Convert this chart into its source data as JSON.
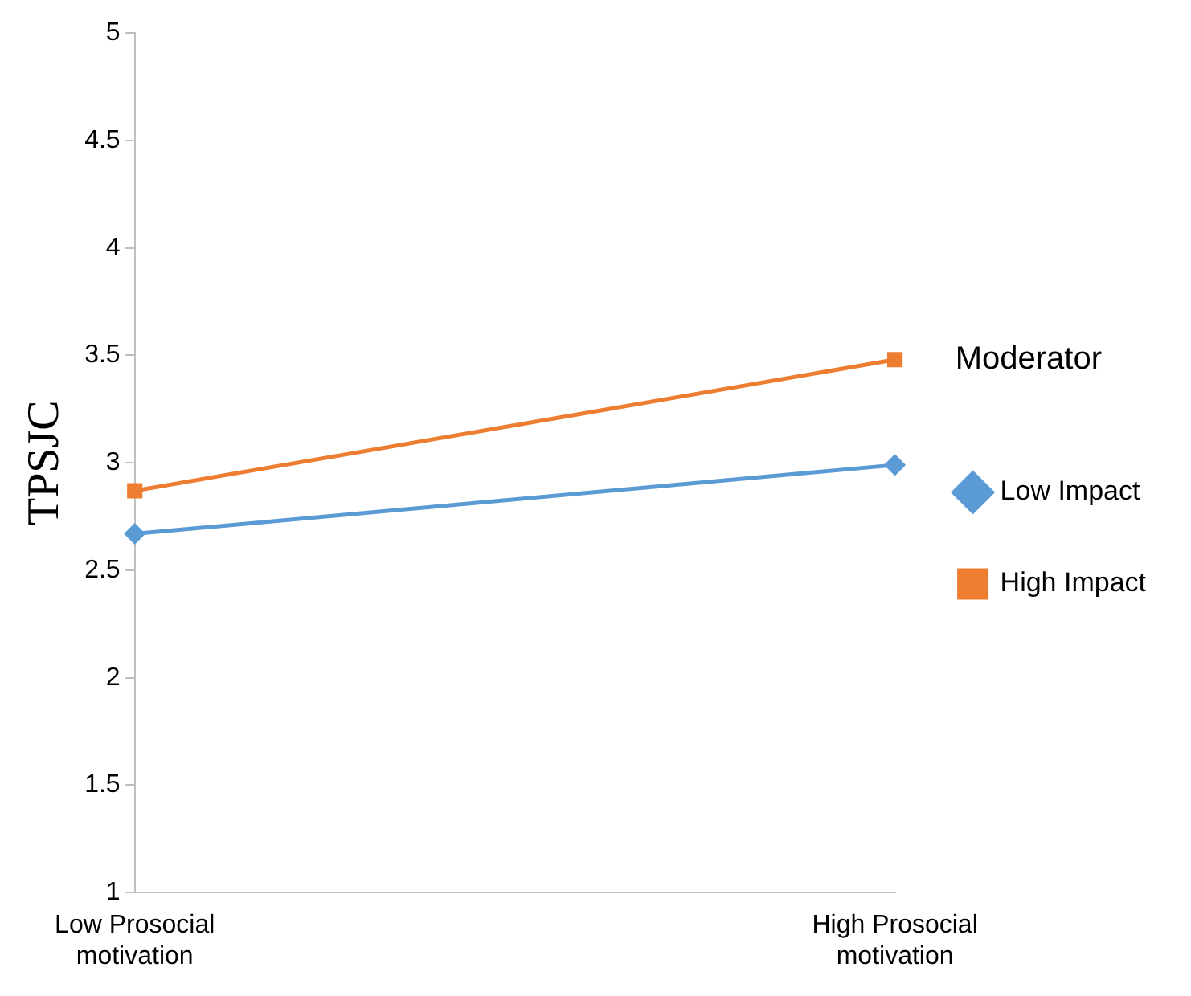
{
  "chart_data": {
    "type": "line",
    "ylabel": "TPSJC",
    "legend_title": "Moderator",
    "legend": "right",
    "grid": false,
    "categories": [
      "Low Prosocial motivation",
      "High Prosocial motivation"
    ],
    "ylim": [
      1,
      5
    ],
    "yticks": [
      1,
      1.5,
      2,
      2.5,
      3,
      3.5,
      4,
      4.5,
      5
    ],
    "series": [
      {
        "name": "Low Impact",
        "color": "#5b9bd5",
        "marker": "diamond",
        "values": [
          2.67,
          2.99
        ]
      },
      {
        "name": "High Impact",
        "color": "#ed7d31",
        "marker": "square",
        "values": [
          2.87,
          3.48
        ]
      }
    ]
  }
}
